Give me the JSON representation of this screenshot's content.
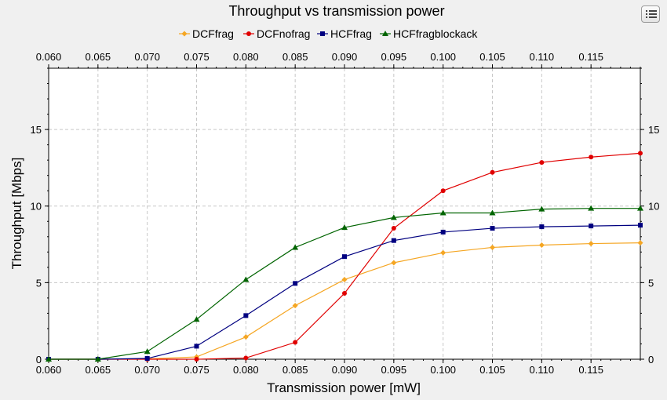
{
  "chart_data": {
    "type": "line",
    "title": "Throughput vs transmission power",
    "xlabel": "Transmission power [mW]",
    "ylabel": "Throughput [Mbps]",
    "xlim": [
      0.06,
      0.12
    ],
    "ylim": [
      0,
      19
    ],
    "grid": true,
    "legend_position": "top",
    "x": [
      0.06,
      0.065,
      0.07,
      0.075,
      0.08,
      0.085,
      0.09,
      0.095,
      0.1,
      0.105,
      0.11,
      0.115,
      0.12
    ],
    "x_ticks": [
      "0.060",
      "0.065",
      "0.070",
      "0.075",
      "0.080",
      "0.085",
      "0.090",
      "0.095",
      "0.100",
      "0.105",
      "0.110",
      "0.115"
    ],
    "y_ticks": [
      "0",
      "5",
      "10",
      "15"
    ],
    "series": [
      {
        "name": "DCFfrag",
        "color": "#f5a623",
        "marker": "diamond",
        "values": [
          0,
          0,
          0.02,
          0.15,
          1.45,
          3.5,
          5.2,
          6.3,
          6.95,
          7.3,
          7.45,
          7.55,
          7.6
        ]
      },
      {
        "name": "DCFnofrag",
        "color": "#e00000",
        "marker": "circle",
        "values": [
          0,
          0,
          0,
          0,
          0.08,
          1.1,
          4.3,
          8.55,
          11.0,
          12.2,
          12.85,
          13.2,
          13.45
        ]
      },
      {
        "name": "HCFfrag",
        "color": "#000080",
        "marker": "square",
        "values": [
          0,
          0,
          0.05,
          0.85,
          2.85,
          4.95,
          6.7,
          7.75,
          8.3,
          8.55,
          8.65,
          8.7,
          8.75
        ]
      },
      {
        "name": "HCFfragblockack",
        "color": "#006400",
        "marker": "triangle",
        "values": [
          0,
          0,
          0.5,
          2.6,
          5.2,
          7.3,
          8.6,
          9.25,
          9.55,
          9.55,
          9.8,
          9.85,
          9.85
        ]
      }
    ]
  },
  "menu_icon": "list-icon"
}
